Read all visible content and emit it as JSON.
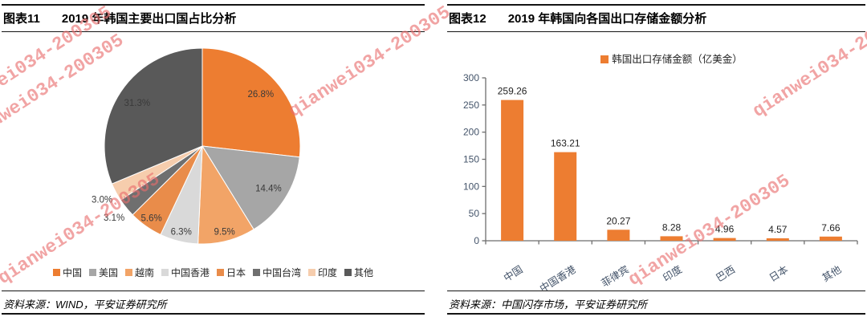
{
  "watermark": {
    "text": "qianwei034-200305"
  },
  "figures": [
    {
      "fig_label": "图表11",
      "title": "2019 年韩国主要出口国占比分析",
      "source": "资料来源：WIND，平安证券研究所"
    },
    {
      "fig_label": "图表12",
      "title": "2019 年韩国向各国出口存储金额分析",
      "source": "资料来源：中国闪存市场，平安证券研究所"
    }
  ],
  "chart_data": [
    {
      "type": "pie",
      "title": "2019 年韩国主要出口国占比分析",
      "labels": [
        "中国",
        "美国",
        "越南",
        "中国香港",
        "日本",
        "中国台湾",
        "印度",
        "其他"
      ],
      "values": [
        26.8,
        14.4,
        9.5,
        6.3,
        5.6,
        3.1,
        3.0,
        31.3
      ],
      "value_labels": [
        "26.8%",
        "14.4%",
        "9.5%",
        "6.3%",
        "5.6%",
        "3.1%",
        "3.0%",
        "31.3%"
      ],
      "colors": [
        "#ED7D31",
        "#A6A6A6",
        "#F2A467",
        "#D9D9D9",
        "#E98C4A",
        "#6F6F6F",
        "#F6CDAD",
        "#595959"
      ],
      "legend_position": "bottom",
      "start_angle_deg": -90,
      "direction": "clockwise"
    },
    {
      "type": "bar",
      "title": "2019 年韩国向各国出口存储金额分析",
      "legend": "韩国出口存储金额（亿美金）",
      "legend_position": "top",
      "categories": [
        "中国",
        "中国香港",
        "菲律宾",
        "印度",
        "巴西",
        "日本",
        "其他"
      ],
      "values": [
        259.26,
        163.21,
        20.27,
        8.28,
        4.96,
        4.57,
        7.66
      ],
      "value_labels": [
        "259.26",
        "163.21",
        "20.27",
        "8.28",
        "4.96",
        "4.57",
        "7.66"
      ],
      "bar_color": "#ED7D31",
      "axis_color": "#6E6E6E",
      "ylim": [
        0,
        300
      ],
      "yticks": [
        0,
        50,
        100,
        150,
        200,
        250,
        300
      ],
      "grid": false
    }
  ]
}
